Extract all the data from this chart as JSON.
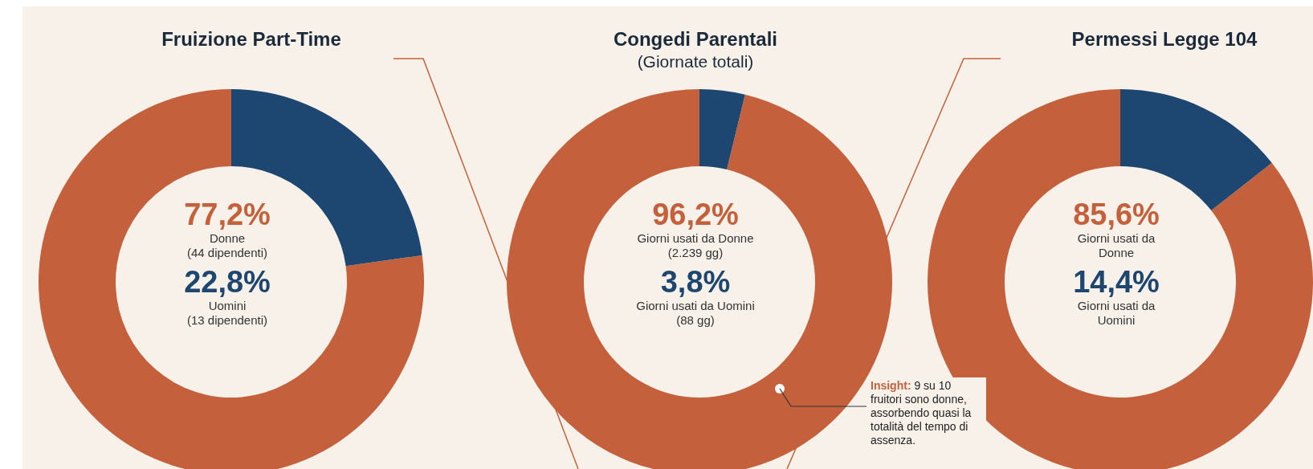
{
  "chart_data": [
    {
      "type": "donut",
      "title": "Fruizione Part-Time",
      "categories": [
        null,
        null
      ],
      "values": [
        77.2,
        22.8
      ],
      "colors": [
        "#c4603b",
        "#1d4670"
      ],
      "annotations": [
        "77,2%",
        "Donne (44 dipendenti)",
        "22,8%",
        "Uomini (13 dipendenti)"
      ]
    },
    {
      "type": "donut",
      "title": "Congedi Parentali",
      "subtitle": "(Giornate totali)",
      "categories": [
        null,
        null
      ],
      "values": [
        96.2,
        3.8
      ],
      "colors": [
        "#c4603b",
        "#1d4670"
      ],
      "annotations": [
        "96,2%",
        "Giorni usati da Donne (2.239 gg)",
        "3,8%",
        "Giorni usati da Uomini (88 gg)",
        "Insight: 9 su 10 fruitori sono donne, assorbendo quasi la totalità del tempo di assenza."
      ]
    },
    {
      "type": "donut",
      "title": "Permessi Legge 104",
      "categories": [
        null,
        null
      ],
      "values": [
        85.6,
        14.4
      ],
      "colors": [
        "#c4603b",
        "#1d4670"
      ],
      "annotations": [
        "85,6%",
        "Giorni usati da Donne",
        "14,4%",
        "Giorni usati da Uomini"
      ]
    }
  ]
}
